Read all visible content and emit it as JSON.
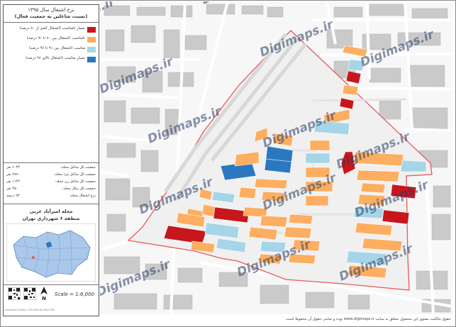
{
  "title": {
    "line1": "نرخ اشتغال سال ۱۳۹۵",
    "line2": "(نسبت شاغلین به جمعیت فعال)"
  },
  "legend": [
    {
      "label": "بسیار نامناسب (اشتغال کمتر از ۸۰ درصد)",
      "color": "#c8161d"
    },
    {
      "label": "نامناسب (اشتغال بین ۸۰ تا ۹۱ درصد)",
      "color": "#fdae61"
    },
    {
      "label": "مناسب (اشتغال بین ۹۱ تا ۹۶ درصد)",
      "color": "#a6d5e8"
    },
    {
      "label": "بسیار مناسب (اشتغال بالای ۹۶ درصد)",
      "color": "#2b78c0"
    }
  ],
  "stats": [
    {
      "label": "جمعیت کل شاغل محله:",
      "value": "۶۰۳۴ نفر"
    },
    {
      "label": "جمعیت کل شاغل مرد محله:",
      "value": "۴۸۹۰ نفر"
    },
    {
      "label": "جمعیت کل شاغل زن محله:",
      "value": "۱۱۴۴ نفر"
    },
    {
      "label": "جمعیت کل بیکار محله:",
      "value": "۴۵۰ نفر"
    },
    {
      "label": "نرخ اشتغال محله:",
      "value": "۹۳ درصد"
    }
  ],
  "location": {
    "neighborhood": "محله امیرآباد غربی",
    "district": "منطقه ۶ شهرداری تهران"
  },
  "scale": "Scale = 1:6,000",
  "north": "N",
  "credit": "Coordinate System: UTM WGS 84 Zone 39N",
  "watermark": "Digimaps.ir",
  "footer": "حقوق مالکیت معنوی این محصول متعلق به سایت www.digimaps.ir بوده و تمامی حقوق آن محفوظ است.",
  "colors": {
    "very_poor": "#c8161d",
    "poor": "#fdae61",
    "good": "#a6d5e8",
    "very_good": "#2b78c0",
    "boundary": "#e8585a",
    "basemap_block": "#c9c9c9"
  }
}
